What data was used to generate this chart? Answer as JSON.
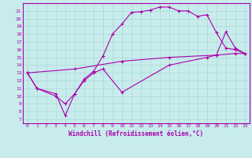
{
  "xlabel": "Windchill (Refroidissement éolien,°C)",
  "bg_color": "#c8ecec",
  "grid_color": "#aad8d8",
  "line_color": "#aa00aa",
  "xlim": [
    -0.5,
    23.5
  ],
  "ylim": [
    6.5,
    22
  ],
  "xticks": [
    0,
    1,
    2,
    3,
    4,
    5,
    6,
    7,
    8,
    9,
    10,
    11,
    12,
    13,
    14,
    15,
    16,
    17,
    18,
    19,
    20,
    21,
    22,
    23
  ],
  "yticks": [
    7,
    8,
    9,
    10,
    11,
    12,
    13,
    14,
    15,
    16,
    17,
    18,
    19,
    20,
    21
  ],
  "series1": [
    [
      0,
      13
    ],
    [
      1,
      11
    ],
    [
      3,
      10
    ],
    [
      4,
      9
    ],
    [
      5,
      10.3
    ],
    [
      6,
      12.2
    ],
    [
      7,
      13.2
    ],
    [
      8,
      15.2
    ],
    [
      9,
      18
    ],
    [
      10,
      19.3
    ],
    [
      11,
      20.8
    ],
    [
      12,
      20.9
    ],
    [
      13,
      21.1
    ],
    [
      14,
      21.5
    ],
    [
      15,
      21.5
    ],
    [
      16,
      21.0
    ],
    [
      17,
      21.0
    ],
    [
      18,
      20.3
    ],
    [
      19,
      20.5
    ],
    [
      20,
      18.2
    ],
    [
      21,
      16.2
    ],
    [
      22,
      16.0
    ],
    [
      23,
      15.5
    ]
  ],
  "series2": [
    [
      0,
      13
    ],
    [
      5,
      13.5
    ],
    [
      10,
      14.5
    ],
    [
      15,
      15.0
    ],
    [
      20,
      15.3
    ],
    [
      22,
      15.5
    ],
    [
      23,
      15.5
    ]
  ],
  "series3": [
    [
      0,
      13
    ],
    [
      1,
      11
    ],
    [
      3,
      10.3
    ],
    [
      4,
      7.5
    ],
    [
      5,
      10.3
    ],
    [
      6,
      12.0
    ],
    [
      7,
      13.0
    ],
    [
      8,
      13.5
    ],
    [
      10,
      10.5
    ],
    [
      15,
      14.0
    ],
    [
      19,
      15.0
    ],
    [
      20,
      15.3
    ],
    [
      21,
      18.3
    ],
    [
      22,
      16.2
    ],
    [
      23,
      15.5
    ]
  ]
}
